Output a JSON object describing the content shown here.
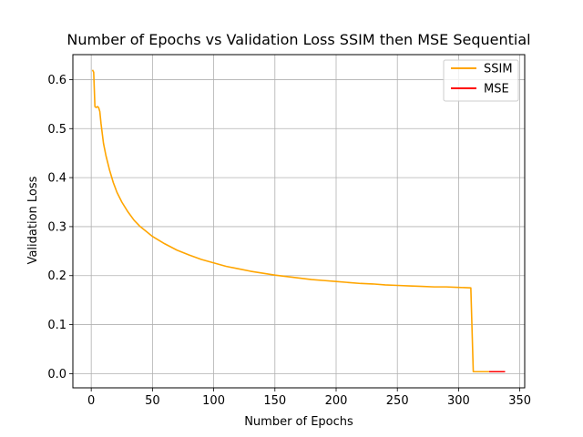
{
  "chart_data": {
    "type": "line",
    "title": "Number of Epochs vs Validation Loss SSIM then MSE Sequential",
    "xlabel": "Number of Epochs",
    "ylabel": "Validation Loss",
    "xlim": [
      -15,
      354
    ],
    "ylim": [
      -0.029,
      0.651
    ],
    "xticks": [
      0,
      50,
      100,
      150,
      200,
      250,
      300,
      350
    ],
    "yticks": [
      0.0,
      0.1,
      0.2,
      0.3,
      0.4,
      0.5,
      0.6
    ],
    "xtick_labels": [
      "0",
      "50",
      "100",
      "150",
      "200",
      "250",
      "300",
      "350"
    ],
    "ytick_labels": [
      "0.0",
      "0.1",
      "0.2",
      "0.3",
      "0.4",
      "0.5",
      "0.6"
    ],
    "grid": true,
    "legend_position": "top-right",
    "series": [
      {
        "name": "SSIM",
        "color": "#ffa500",
        "x": [
          1,
          2,
          3,
          4,
          5,
          6,
          7,
          8,
          10,
          12,
          15,
          18,
          21,
          25,
          30,
          35,
          40,
          45,
          50,
          60,
          70,
          80,
          90,
          100,
          110,
          120,
          130,
          140,
          150,
          160,
          170,
          180,
          190,
          200,
          210,
          220,
          230,
          240,
          250,
          260,
          270,
          280,
          290,
          300,
          310,
          311,
          312,
          325
        ],
        "y": [
          0.62,
          0.615,
          0.545,
          0.543,
          0.545,
          0.543,
          0.535,
          0.51,
          0.47,
          0.445,
          0.415,
          0.39,
          0.37,
          0.35,
          0.33,
          0.313,
          0.3,
          0.29,
          0.28,
          0.265,
          0.252,
          0.242,
          0.233,
          0.226,
          0.219,
          0.214,
          0.209,
          0.205,
          0.201,
          0.198,
          0.195,
          0.192,
          0.19,
          0.188,
          0.186,
          0.184,
          0.183,
          0.181,
          0.18,
          0.179,
          0.178,
          0.177,
          0.177,
          0.176,
          0.175,
          0.09,
          0.004,
          0.004
        ]
      },
      {
        "name": "MSE",
        "color": "#ff0000",
        "x": [
          325,
          330,
          335,
          338
        ],
        "y": [
          0.004,
          0.004,
          0.004,
          0.004
        ]
      }
    ]
  }
}
